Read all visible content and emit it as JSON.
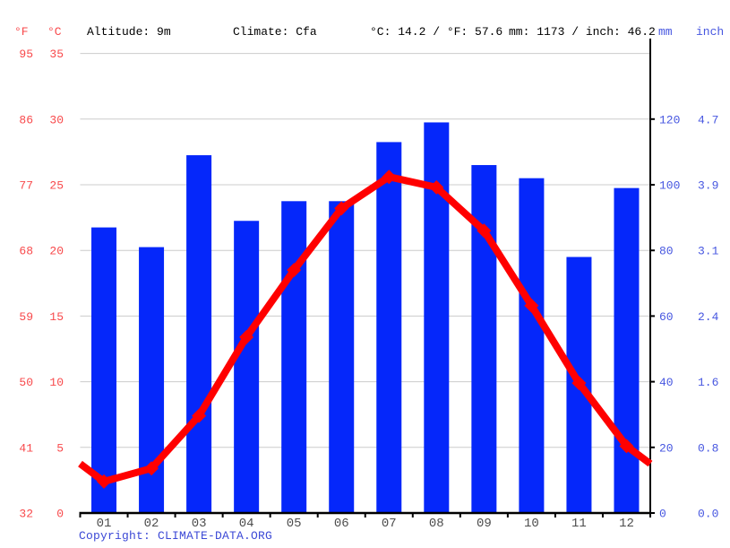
{
  "header": {
    "unit_f": "°F",
    "unit_c": "°C",
    "altitude": "Altitude: 9m",
    "climate": "Climate: Cfa",
    "temp_summary": "°C: 14.2 / °F: 57.6",
    "precip_summary": "mm: 1173 / inch: 46.2",
    "unit_mm": "mm",
    "unit_inch": "inch"
  },
  "footer": {
    "copyright": "Copyright: CLIMATE-DATA.ORG"
  },
  "chart_data": {
    "type": "combo",
    "categories": [
      "01",
      "02",
      "03",
      "04",
      "05",
      "06",
      "07",
      "08",
      "09",
      "10",
      "11",
      "12"
    ],
    "series": [
      {
        "name": "precipitation",
        "type": "bar",
        "unit": "mm",
        "values": [
          87,
          81,
          109,
          89,
          95,
          95,
          113,
          119,
          106,
          102,
          78,
          99
        ]
      },
      {
        "name": "temperature",
        "type": "line",
        "unit": "°C",
        "values": [
          2.4,
          3.4,
          7.4,
          13.4,
          18.5,
          23.2,
          25.6,
          24.8,
          21.5,
          15.8,
          9.9,
          5.1
        ]
      }
    ],
    "temperature_axis": {
      "side": "left",
      "min_c": 0,
      "max_c": 35,
      "step_c": 5,
      "c_ticks": [
        "35",
        "30",
        "25",
        "20",
        "15",
        "10",
        "5",
        "0"
      ],
      "f_ticks": [
        "95",
        "86",
        "77",
        "68",
        "59",
        "50",
        "41",
        "32"
      ]
    },
    "precipitation_axis": {
      "side": "right",
      "min_mm": 0,
      "max_mm": 140,
      "step_mm": 20,
      "mm_ticks": [
        "120",
        "100",
        "80",
        "60",
        "40",
        "20",
        "0"
      ],
      "inch_ticks": [
        "4.7",
        "3.9",
        "3.1",
        "2.4",
        "1.6",
        "0.8",
        "0.0"
      ]
    },
    "grid": true,
    "legend": "none",
    "annual_mean_temp_c": 14.2,
    "annual_precipitation_mm": 1173
  },
  "colors": {
    "bar": "#0527fa",
    "line": "#ff0000",
    "temp_label": "#f8494b",
    "precip_label": "#4656e0",
    "grid": "#cccccc",
    "axis": "#000000",
    "month_label": "#4d4d4d",
    "link_blue": "#3c49d6"
  }
}
